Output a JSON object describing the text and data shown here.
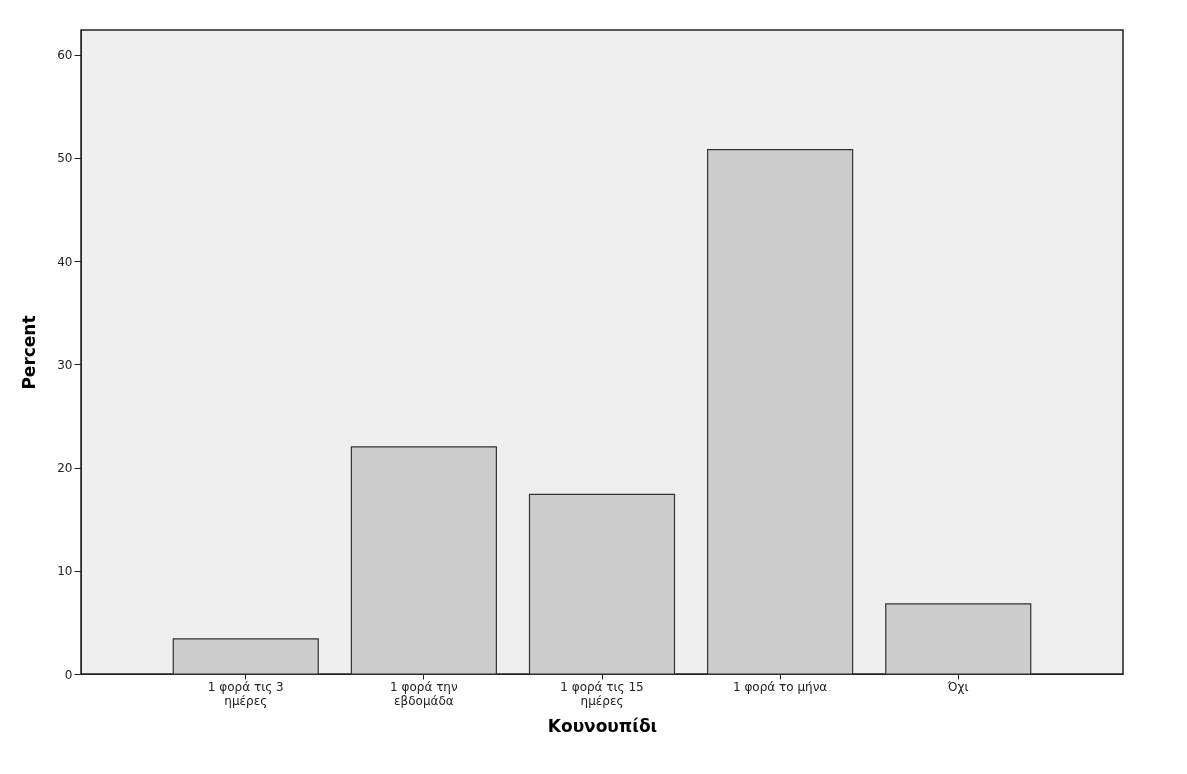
{
  "chart_data": {
    "type": "bar",
    "categories": [
      "1 φορά τις 3\nημέρες",
      "1 φορά την\nεβδομάδα",
      "1 φορά τις 15\nημέρες",
      "1 φορά το μήνα",
      "Όχι"
    ],
    "values": [
      3.4,
      22.0,
      17.4,
      50.8,
      6.8
    ],
    "color": "#cccccc",
    "xlabel": "Κουνουπίδι",
    "ylabel": "Percent",
    "ylim": [
      0,
      62.4
    ],
    "yticks": [
      0,
      10,
      20,
      30,
      40,
      50,
      60
    ],
    "grid": false
  }
}
